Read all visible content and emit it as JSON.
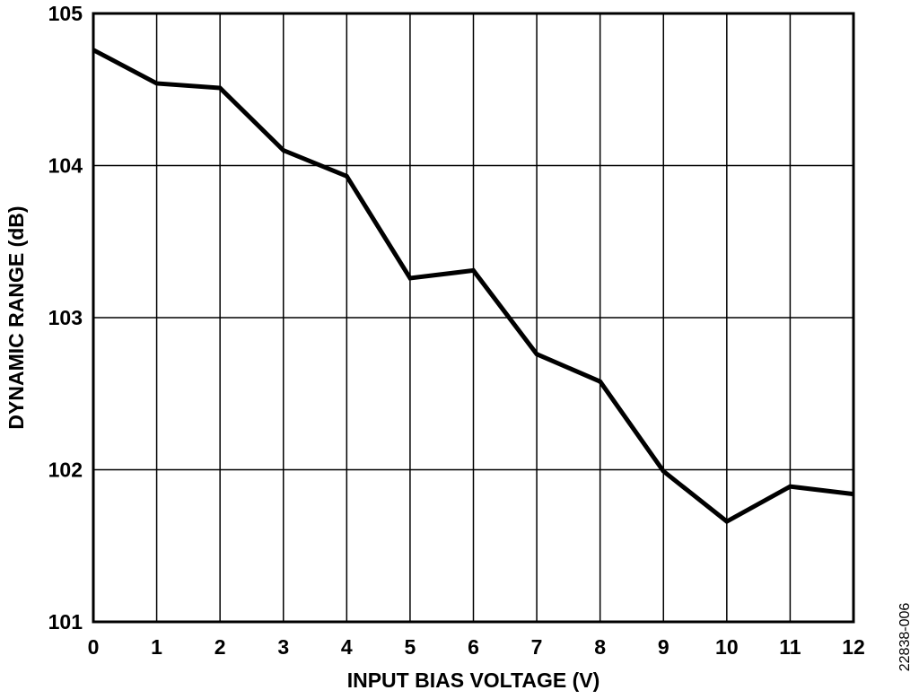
{
  "chart_data": {
    "type": "line",
    "title": "",
    "xlabel": "INPUT BIAS VOLTAGE (V)",
    "ylabel": "DYNAMIC RANGE (dB)",
    "xlim": [
      0,
      12
    ],
    "ylim": [
      101,
      105
    ],
    "xticks": [
      "0",
      "1",
      "2",
      "3",
      "4",
      "5",
      "6",
      "7",
      "8",
      "9",
      "10",
      "11",
      "12"
    ],
    "yticks": [
      "101",
      "102",
      "103",
      "104",
      "105"
    ],
    "grid": true,
    "legend": "none",
    "series": [
      {
        "color": "#000000",
        "x": [
          0,
          1,
          2,
          3,
          4,
          5,
          6,
          7,
          8,
          9,
          10,
          11,
          12
        ],
        "y": [
          104.76,
          104.54,
          104.51,
          104.1,
          103.93,
          103.26,
          103.31,
          102.76,
          102.58,
          101.99,
          101.66,
          101.89,
          101.84
        ]
      }
    ]
  },
  "figure_id": "22838-006"
}
